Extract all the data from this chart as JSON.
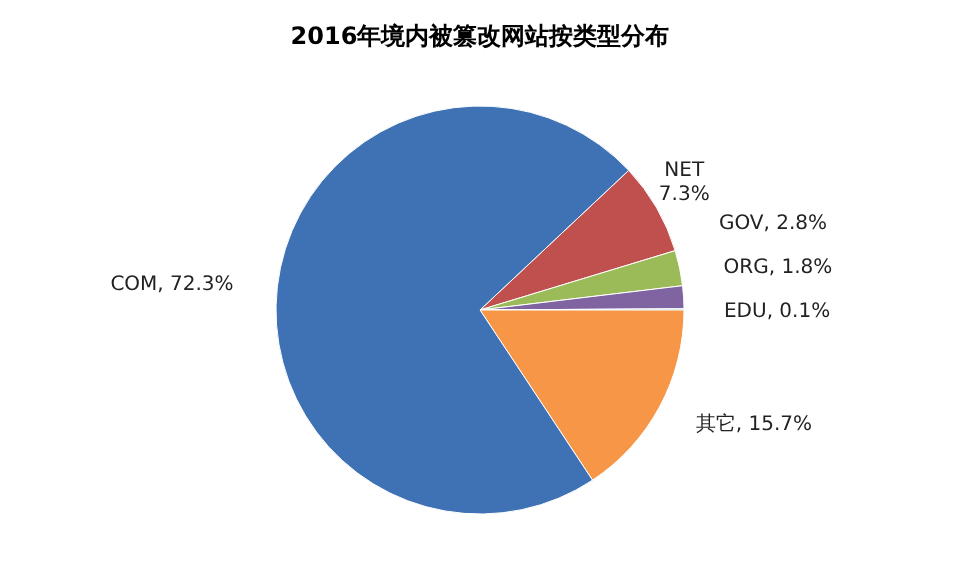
{
  "chart_data": {
    "type": "pie",
    "title": "2016年境内被篡改网站按类型分布",
    "categories": [
      "NET",
      "GOV",
      "ORG",
      "EDU",
      "其它",
      "COM"
    ],
    "values": [
      7.3,
      2.8,
      1.8,
      0.1,
      15.7,
      72.3
    ],
    "colors": [
      "#c0504d",
      "#9bbb59",
      "#8064a2",
      "#4bacc6",
      "#f79646",
      "#3f72b5"
    ],
    "value_labels": [
      "7.3%",
      ", 2.8%",
      ", 1.8%",
      ", 0.1%",
      ", 15.7%",
      ", 72.3%"
    ]
  }
}
